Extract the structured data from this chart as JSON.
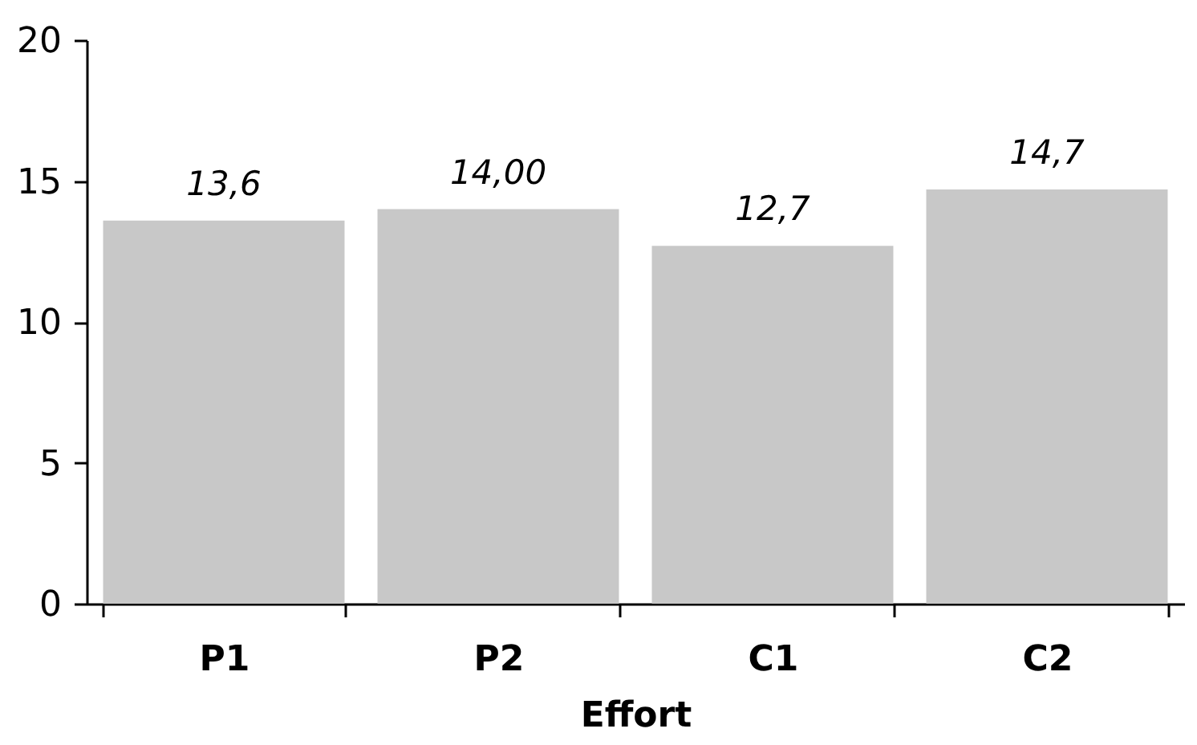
{
  "chart_data": {
    "type": "bar",
    "xlabel": "Effort",
    "categories": [
      "P1",
      "P2",
      "C1",
      "C2"
    ],
    "values": [
      13.6,
      14.0,
      12.7,
      14.7
    ],
    "value_labels": [
      "13,6",
      "14,00",
      "12,7",
      "14,7"
    ],
    "color": "#c8c8c8",
    "ylim": [
      0,
      20
    ],
    "yticks": [
      0,
      5,
      10,
      15,
      20
    ],
    "grid": false
  }
}
